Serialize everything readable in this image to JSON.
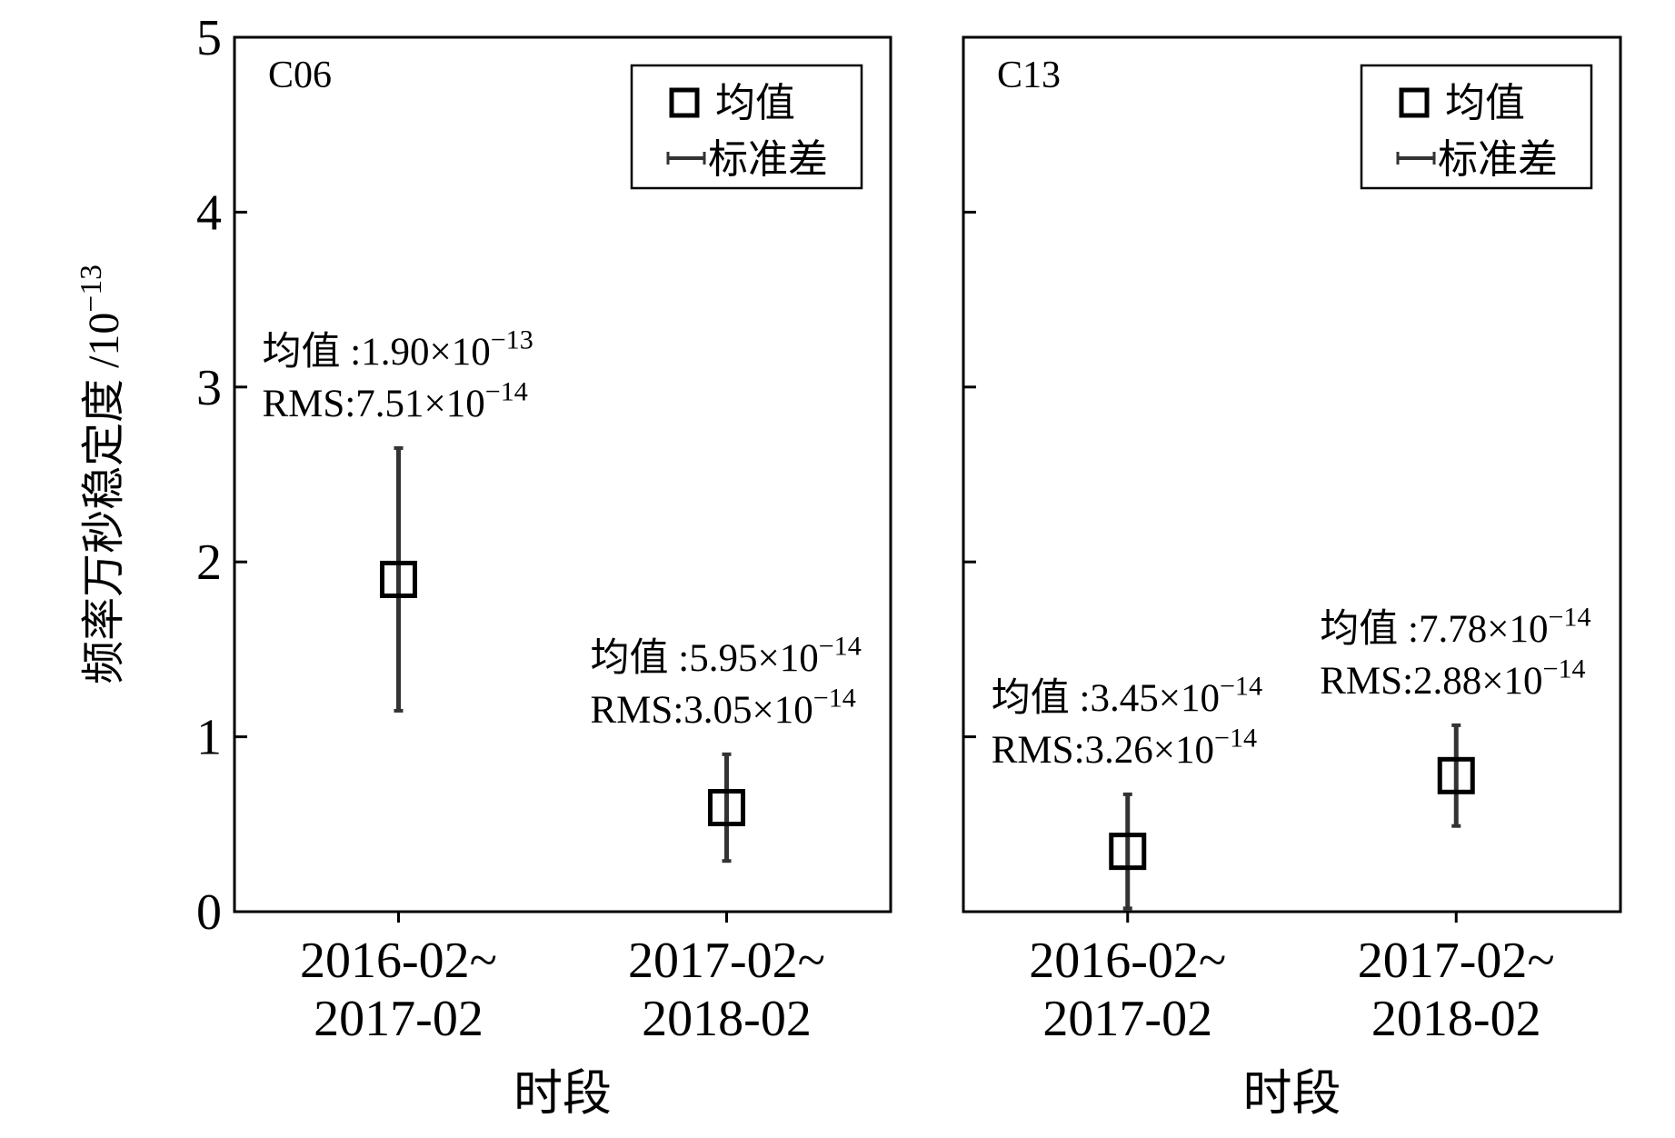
{
  "chart_data": [
    {
      "type": "errorbar",
      "title": "C06",
      "ylabel": "频率万秒稳定度 /10",
      "ylabel_exp": "−13",
      "xlabel": "时段",
      "categories": [
        [
          "2016-02~",
          "2017-02"
        ],
        [
          "2017-02~",
          "2018-02"
        ]
      ],
      "series": [
        {
          "name": "均值",
          "error_name": "标准差",
          "color": "#000000",
          "error_color": "#333333",
          "values": [
            1.9,
            0.595
          ],
          "errors": [
            0.751,
            0.305
          ]
        }
      ],
      "annotations": [
        {
          "mean_text": "均值 :1.90×10",
          "mean_exp": "−13",
          "rms_text": "RMS:7.51×10",
          "rms_exp": "−14"
        },
        {
          "mean_text": "均值 :5.95×10",
          "mean_exp": "−14",
          "rms_text": "RMS:3.05×10",
          "rms_exp": "−14"
        }
      ],
      "ylim": [
        0,
        5
      ],
      "yticks": [
        0,
        1,
        2,
        3,
        4,
        5
      ],
      "ytick_labels": true,
      "legend": "upper right"
    },
    {
      "type": "errorbar",
      "title": "C13",
      "xlabel": "时段",
      "categories": [
        [
          "2016-02~",
          "2017-02"
        ],
        [
          "2017-02~",
          "2018-02"
        ]
      ],
      "series": [
        {
          "name": "均值",
          "error_name": "标准差",
          "color": "#000000",
          "error_color": "#333333",
          "values": [
            0.345,
            0.778
          ],
          "errors": [
            0.326,
            0.288
          ]
        }
      ],
      "annotations": [
        {
          "mean_text": "均值 :3.45×10",
          "mean_exp": "−14",
          "rms_text": "RMS:3.26×10",
          "rms_exp": "−14"
        },
        {
          "mean_text": "均值 :7.78×10",
          "mean_exp": "−14",
          "rms_text": "RMS:2.88×10",
          "rms_exp": "−14"
        }
      ],
      "ylim": [
        0,
        5
      ],
      "yticks": [
        0,
        1,
        2,
        3,
        4,
        5
      ],
      "ytick_labels": false,
      "legend": "upper right"
    }
  ]
}
